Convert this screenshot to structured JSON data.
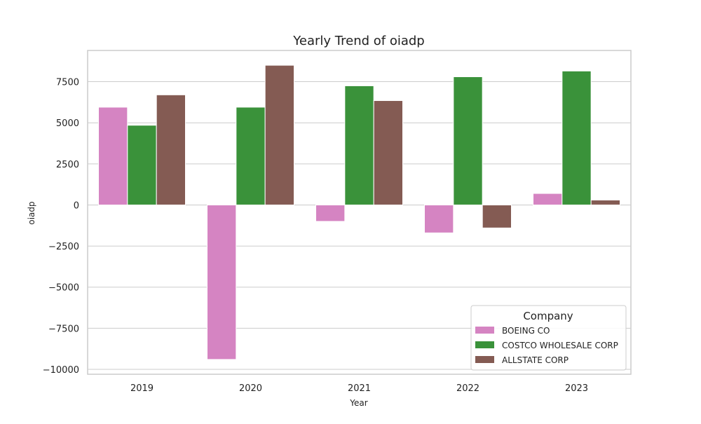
{
  "chart_data": {
    "type": "bar",
    "title": "Yearly Trend of oiadp",
    "xlabel": "Year",
    "ylabel": "oiadp",
    "categories": [
      "2019",
      "2020",
      "2021",
      "2022",
      "2023"
    ],
    "series": [
      {
        "name": "BOEING CO",
        "color": "#d584c2",
        "values": [
          5950,
          -9400,
          -1000,
          -1700,
          700
        ]
      },
      {
        "name": "COSTCO WHOLESALE CORP",
        "color": "#3a923a",
        "values": [
          4850,
          5950,
          7250,
          7800,
          8150
        ]
      },
      {
        "name": "ALLSTATE CORP",
        "color": "#845b53",
        "values": [
          6700,
          8500,
          6350,
          -1400,
          300
        ]
      }
    ],
    "ylim": [
      -10300,
      9400
    ],
    "yticks": [
      -10000,
      -7500,
      -5000,
      -2500,
      0,
      2500,
      5000,
      7500
    ],
    "ytick_labels": [
      "−10000",
      "−7500",
      "−5000",
      "−2500",
      "0",
      "2500",
      "5000",
      "7500"
    ],
    "grid": "y",
    "legend": {
      "title": "Company",
      "position": "lower-right"
    }
  }
}
